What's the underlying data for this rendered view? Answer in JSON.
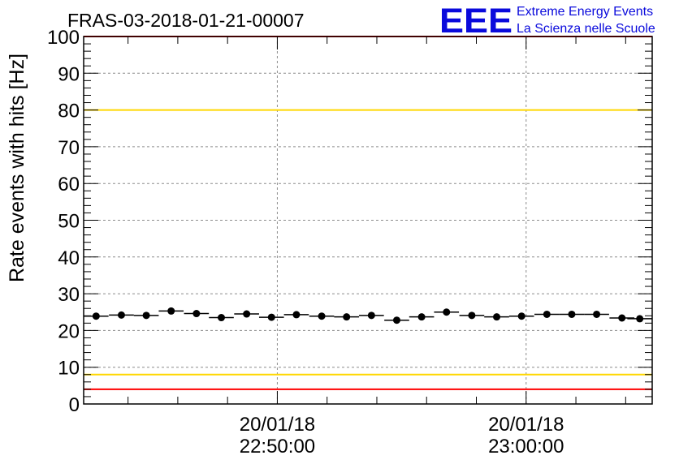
{
  "chart_data": {
    "type": "scatter",
    "title": "FRAS-03-2018-01-21-00007",
    "xlabel": "",
    "ylabel": "Rate events with hits [Hz]",
    "ylim": [
      0,
      100
    ],
    "xlim": [
      "20/01/18 22:42:13",
      "20/01/18 23:05:04"
    ],
    "yticks": [
      "0",
      "10",
      "20",
      "30",
      "40",
      "50",
      "60",
      "70",
      "80",
      "90",
      "100"
    ],
    "xticks": [
      {
        "date": "20/01/18",
        "time": "22:50:00",
        "x": "20/01/18 22:50:00"
      },
      {
        "date": "20/01/18",
        "time": "23:00:00",
        "x": "20/01/18 23:00:00"
      }
    ],
    "grid": true,
    "series": [
      {
        "marker": "circle",
        "color": "#000000",
        "x": [
          "20/01/18 22:42:43",
          "20/01/18 22:43:44",
          "20/01/18 22:44:44",
          "20/01/18 22:45:44",
          "20/01/18 22:46:45",
          "20/01/18 22:47:45",
          "20/01/18 22:48:46",
          "20/01/18 22:49:46",
          "20/01/18 22:50:46",
          "20/01/18 22:51:47",
          "20/01/18 22:52:47",
          "20/01/18 22:53:47",
          "20/01/18 22:54:48",
          "20/01/18 22:55:48",
          "20/01/18 22:56:48",
          "20/01/18 22:57:49",
          "20/01/18 22:58:49",
          "20/01/18 22:59:49",
          "20/01/18 23:00:50",
          "20/01/18 23:01:50",
          "20/01/18 23:02:50",
          "20/01/18 23:03:51",
          "20/01/18 23:04:34"
        ],
        "values": [
          23.9,
          24.2,
          24.1,
          25.3,
          24.6,
          23.5,
          24.5,
          23.6,
          24.3,
          23.9,
          23.7,
          24.1,
          22.8,
          23.7,
          25.0,
          24.1,
          23.7,
          23.9,
          24.4,
          24.4,
          24.4,
          23.4,
          23.2
        ],
        "x_error_seconds": 30
      }
    ],
    "reference_lines": [
      {
        "y": 100,
        "color": "#ff0000"
      },
      {
        "y": 80,
        "color": "#ffd700"
      },
      {
        "y": 8,
        "color": "#ffd700"
      },
      {
        "y": 4,
        "color": "#ff0000"
      }
    ]
  },
  "logo": {
    "mark": "EEE",
    "line1": "Extreme Energy Events",
    "line2": "La Scienza nelle Scuole",
    "color": "#0a0adc"
  }
}
